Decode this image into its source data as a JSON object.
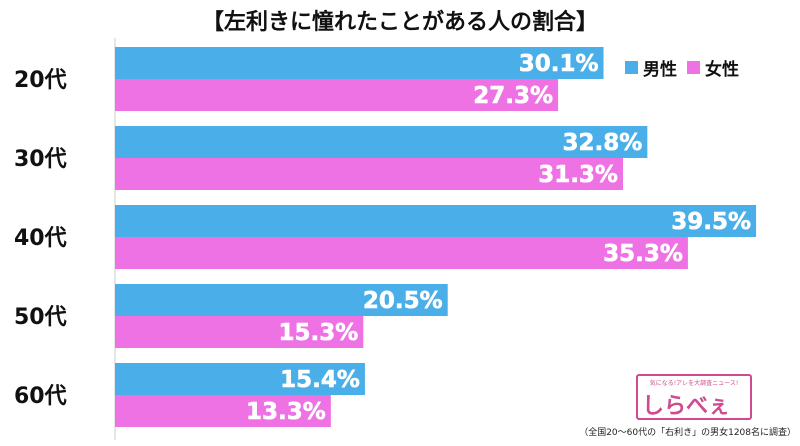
{
  "chart_data": {
    "type": "bar",
    "orientation": "horizontal",
    "title": "【左利きに憧れたことがある人の割合】",
    "categories": [
      "20代",
      "30代",
      "40代",
      "50代",
      "60代"
    ],
    "series": [
      {
        "name": "男性",
        "color": "#4aaee9",
        "values": [
          30.1,
          32.8,
          39.5,
          20.5,
          15.4
        ]
      },
      {
        "name": "女性",
        "color": "#ee72e4",
        "values": [
          27.3,
          31.3,
          35.3,
          15.3,
          13.3
        ]
      }
    ],
    "value_suffix": "%",
    "xlim": [
      0,
      40
    ],
    "legend_position": "top-right",
    "grid": false
  },
  "logo": {
    "tagline": "気になる!アレを大調査ニュース!",
    "name": "しらべぇ"
  },
  "footnote": "（全国20～60代の「右利き」の男女1208名に調査）"
}
